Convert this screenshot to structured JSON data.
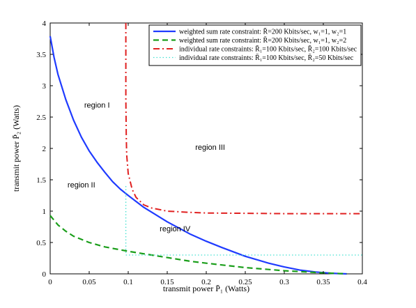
{
  "chart_data": {
    "type": "line",
    "xlabel": "transmit power P̄₁ (Watts)",
    "ylabel": "transmit power P̄₂ (Watts)",
    "xlim": [
      0,
      0.4
    ],
    "ylim": [
      0,
      4
    ],
    "x_ticks": [
      "0",
      "0.05",
      "0.1",
      "0.15",
      "0.2",
      "0.25",
      "0.3",
      "0.35",
      "0.4"
    ],
    "y_ticks": [
      "0",
      "0.5",
      "1",
      "1.5",
      "2",
      "2.5",
      "3",
      "3.5",
      "4"
    ],
    "grid": false,
    "legend_position": "top-right",
    "series": [
      {
        "name": "weighted sum rate constraint: R̄=200 Kbits/sec, w₁=1, w₂=1",
        "color": "#1f3bff",
        "style": "solid",
        "x": [
          0,
          0.005,
          0.01,
          0.02,
          0.03,
          0.04,
          0.05,
          0.06,
          0.07,
          0.08,
          0.09,
          0.1,
          0.12,
          0.15,
          0.18,
          0.2,
          0.22,
          0.25,
          0.28,
          0.3,
          0.32,
          0.34,
          0.36,
          0.37,
          0.38
        ],
        "y": [
          3.79,
          3.45,
          3.18,
          2.78,
          2.45,
          2.18,
          1.96,
          1.78,
          1.62,
          1.47,
          1.35,
          1.25,
          1.06,
          0.83,
          0.63,
          0.52,
          0.42,
          0.28,
          0.17,
          0.11,
          0.06,
          0.03,
          0.01,
          0.004,
          0
        ]
      },
      {
        "name": "weighted sum rate constraint: R̄=200 Kbits/sec, w₁=1, w₂=2",
        "color": "#1a9e1a",
        "style": "dashed",
        "x": [
          0,
          0.01,
          0.02,
          0.03,
          0.05,
          0.07,
          0.1,
          0.13,
          0.15,
          0.18,
          0.2,
          0.25,
          0.3,
          0.35,
          0.38
        ],
        "y": [
          0.93,
          0.78,
          0.68,
          0.6,
          0.5,
          0.43,
          0.36,
          0.3,
          0.26,
          0.2,
          0.17,
          0.1,
          0.05,
          0.015,
          0
        ]
      },
      {
        "name": "individual rate constraints: R̄₁=100 Kbits/sec, R̄₂=100 Kbits/sec",
        "color": "#e02020",
        "style": "dashdot",
        "x": [
          0.097,
          0.097,
          0.0975,
          0.098,
          0.1,
          0.105,
          0.11,
          0.12,
          0.13,
          0.15,
          0.18,
          0.2,
          0.25,
          0.3,
          0.35,
          0.4
        ],
        "y": [
          4,
          2.8,
          2.2,
          1.9,
          1.6,
          1.35,
          1.22,
          1.1,
          1.05,
          1.0,
          0.98,
          0.97,
          0.965,
          0.96,
          0.96,
          0.96
        ]
      },
      {
        "name": "individual rate constraints: R̄₁=100 Kbits/sec, R̄₂=50 Kbits/sec",
        "color": "#40e0d0",
        "style": "dotted",
        "x": [
          0.097,
          0.097,
          0.4
        ],
        "y": [
          1.4,
          0.3,
          0.3
        ]
      }
    ],
    "annotations": [
      {
        "text": "region I",
        "x": 0.06,
        "y": 2.65
      },
      {
        "text": "region II",
        "x": 0.04,
        "y": 1.38
      },
      {
        "text": "region III",
        "x": 0.205,
        "y": 1.98
      },
      {
        "text": "region IV",
        "x": 0.16,
        "y": 0.68
      }
    ]
  }
}
